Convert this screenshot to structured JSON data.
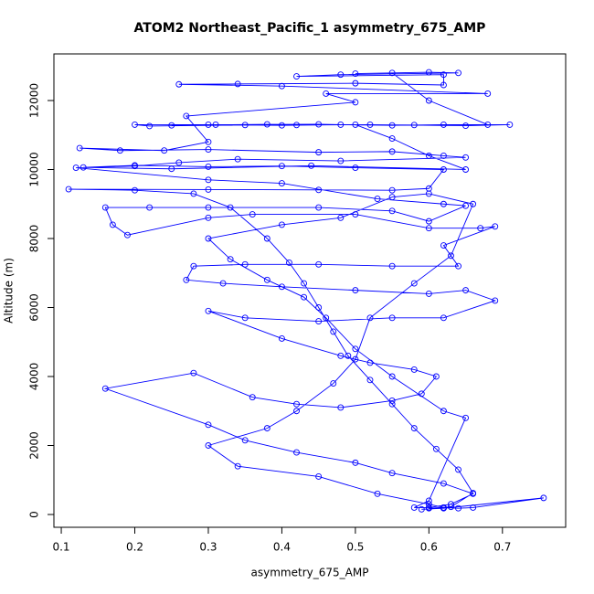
{
  "chart_data": {
    "type": "line",
    "title": "ATOM2 Northeast_Pacific_1 asymmetry_675_AMP",
    "x_label": "asymmetry_675_AMP",
    "y_label": "Altitude (m)",
    "xlim": [
      0.09,
      0.786
    ],
    "ylim": [
      -371,
      13351
    ],
    "xticks": [
      0.1,
      0.2,
      0.3,
      0.4,
      0.5,
      0.6,
      0.7
    ],
    "yticks": [
      0,
      2000,
      4000,
      6000,
      8000,
      10000,
      12000
    ],
    "color": "#0000ff",
    "x": [
      0.62,
      0.6,
      0.63,
      0.66,
      0.64,
      0.61,
      0.58,
      0.55,
      0.52,
      0.49,
      0.47,
      0.45,
      0.43,
      0.41,
      0.38,
      0.33,
      0.28,
      0.2,
      0.11,
      0.3,
      0.45,
      0.55,
      0.6,
      0.62,
      0.5,
      0.4,
      0.3,
      0.2,
      0.13,
      0.25,
      0.44,
      0.65,
      0.6,
      0.55,
      0.5,
      0.4,
      0.3,
      0.2,
      0.22,
      0.35,
      0.45,
      0.55,
      0.62,
      0.71,
      0.65,
      0.52,
      0.42,
      0.31,
      0.25,
      0.38,
      0.48,
      0.58,
      0.68,
      0.6,
      0.55,
      0.5,
      0.6,
      0.64,
      0.48,
      0.42,
      0.62,
      0.62,
      0.5,
      0.34,
      0.26,
      0.4,
      0.68,
      0.46,
      0.5,
      0.27,
      0.3,
      0.24,
      0.125,
      0.18,
      0.3,
      0.45,
      0.55,
      0.62,
      0.65,
      0.48,
      0.34,
      0.26,
      0.2,
      0.12,
      0.3,
      0.4,
      0.53,
      0.62,
      0.65,
      0.6,
      0.55,
      0.45,
      0.3,
      0.22,
      0.16,
      0.17,
      0.19,
      0.3,
      0.36,
      0.5,
      0.6,
      0.67,
      0.69,
      0.62,
      0.64,
      0.55,
      0.45,
      0.35,
      0.28,
      0.27,
      0.32,
      0.4,
      0.5,
      0.6,
      0.65,
      0.69,
      0.62,
      0.55,
      0.45,
      0.35,
      0.3,
      0.4,
      0.48,
      0.52,
      0.58,
      0.61,
      0.59,
      0.55,
      0.48,
      0.42,
      0.36,
      0.28,
      0.16,
      0.3,
      0.35,
      0.42,
      0.5,
      0.55,
      0.62,
      0.66,
      0.63,
      0.6,
      0.58,
      0.6,
      0.65,
      0.62,
      0.55,
      0.5,
      0.46,
      0.43,
      0.38,
      0.33,
      0.3,
      0.4,
      0.48,
      0.55,
      0.6,
      0.66,
      0.63,
      0.58,
      0.52,
      0.5,
      0.47,
      0.42,
      0.38,
      0.3,
      0.34,
      0.45,
      0.53,
      0.6,
      0.62,
      0.64,
      0.66,
      0.756,
      0.62,
      0.59
    ],
    "values": [
      200,
      180,
      220,
      620,
      1300,
      1900,
      2500,
      3200,
      3900,
      4600,
      5300,
      6000,
      6700,
      7300,
      8000,
      8900,
      9300,
      9400,
      9430,
      9420,
      9410,
      9400,
      9450,
      10000,
      10050,
      10100,
      10080,
      10120,
      10060,
      10020,
      10110,
      10000,
      10400,
      10900,
      11300,
      11280,
      11300,
      11300,
      11260,
      11290,
      11310,
      11280,
      11300,
      11300,
      11270,
      11300,
      11290,
      11300,
      11280,
      11310,
      11300,
      11290,
      11300,
      12000,
      12800,
      12780,
      12820,
      12800,
      12750,
      12700,
      12750,
      12450,
      12500,
      12480,
      12470,
      12420,
      12200,
      12200,
      11950,
      11550,
      10800,
      10550,
      10620,
      10550,
      10580,
      10500,
      10520,
      10400,
      10350,
      10250,
      10300,
      10200,
      10100,
      10050,
      9700,
      9600,
      9150,
      9000,
      8950,
      8500,
      8800,
      8900,
      8900,
      8900,
      8900,
      8400,
      8100,
      8600,
      8700,
      8700,
      8300,
      8300,
      8350,
      7800,
      7200,
      7200,
      7250,
      7250,
      7200,
      6800,
      6700,
      6600,
      6500,
      6400,
      6500,
      6200,
      5700,
      5700,
      5600,
      5700,
      5900,
      5100,
      4600,
      4400,
      4200,
      4000,
      3500,
      3300,
      3100,
      3200,
      3400,
      4100,
      3650,
      2600,
      2150,
      1800,
      1500,
      1200,
      900,
      600,
      300,
      200,
      200,
      400,
      2800,
      3000,
      4000,
      4800,
      5700,
      6300,
      6800,
      7400,
      8000,
      8400,
      8600,
      9200,
      9300,
      9000,
      7500,
      6700,
      5700,
      4500,
      3800,
      3000,
      2500,
      2000,
      1400,
      1100,
      600,
      300,
      200,
      180,
      200,
      480,
      180,
      150
    ]
  }
}
